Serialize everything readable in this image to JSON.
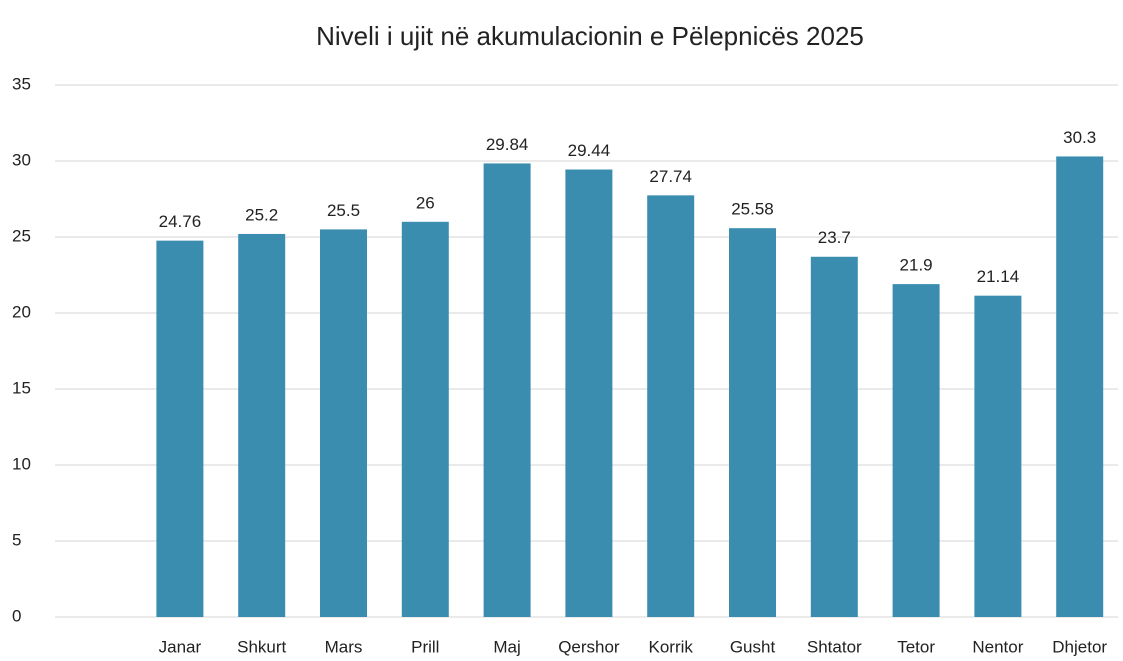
{
  "chart_data": {
    "type": "bar",
    "title": "Niveli i ujit në akumulacionin e Pëlepnicës 2025",
    "categories": [
      "Janar",
      "Shkurt",
      "Mars",
      "Prill",
      "Maj",
      "Qershor",
      "Korrik",
      "Gusht",
      "Shtator",
      "Tetor",
      "Nentor",
      "Dhjetor"
    ],
    "values": [
      24.76,
      25.2,
      25.5,
      26,
      29.84,
      29.44,
      27.74,
      25.58,
      23.7,
      21.9,
      21.14,
      30.3
    ],
    "color": "#3b8db0",
    "ylim": [
      0,
      35
    ],
    "yticks": [
      0,
      5,
      10,
      15,
      20,
      25,
      30,
      35
    ],
    "grid": true
  }
}
